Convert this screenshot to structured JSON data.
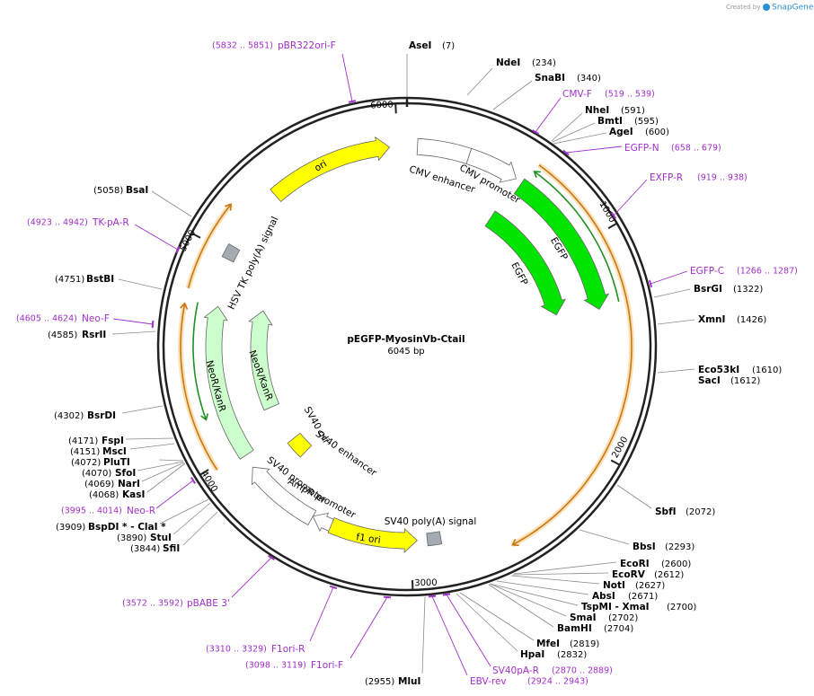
{
  "watermark": {
    "prefix": "Created by",
    "brand": "SnapGene"
  },
  "map": {
    "name": "pEGFP-MyosinVb-Ctail",
    "length": "6045 bp",
    "ticks": [
      "1000",
      "2000",
      "3000",
      "4000",
      "5000",
      "6000"
    ]
  },
  "features": [
    "ori",
    "CMV enhancer",
    "CMV promoter",
    "EGFP",
    "EGFP",
    "NeoR/KanR",
    "NeoR/KanR",
    "HSV TK poly(A) signal",
    "SV40 ori",
    "SV40 enhancer",
    "SV40 promoter",
    "AmpR promoter",
    "f1 ori",
    "SV40 poly(A) signal"
  ],
  "sites": [
    {
      "name": "AseI",
      "position": "(7)"
    },
    {
      "name": "NdeI",
      "position": "(234)"
    },
    {
      "name": "SnaBI",
      "position": "(340)"
    },
    {
      "name": "NheI",
      "position": "(591)"
    },
    {
      "name": "BmtI",
      "position": "(595)"
    },
    {
      "name": "AgeI",
      "position": "(600)"
    },
    {
      "name": "BsrGI",
      "position": "(1322)"
    },
    {
      "name": "XmnI",
      "position": "(1426)"
    },
    {
      "name": "Eco53kI",
      "position": "(1610)"
    },
    {
      "name": "SacI",
      "position": "(1612)"
    },
    {
      "name": "SbfI",
      "position": "(2072)"
    },
    {
      "name": "BbsI",
      "position": "(2293)"
    },
    {
      "name": "EcoRI",
      "position": "(2600)"
    },
    {
      "name": "EcoRV",
      "position": "(2612)"
    },
    {
      "name": "NotI",
      "position": "(2627)"
    },
    {
      "name": "AbsI",
      "position": "(2671)"
    },
    {
      "name": "TspMI - XmaI",
      "position": "(2700)"
    },
    {
      "name": "SmaI",
      "position": "(2702)"
    },
    {
      "name": "BamHI",
      "position": "(2704)"
    },
    {
      "name": "MfeI",
      "position": "(2819)"
    },
    {
      "name": "HpaI",
      "position": "(2832)"
    },
    {
      "name": "MluI",
      "position": "(2955)"
    },
    {
      "name": "SfiI",
      "position": "(3844)"
    },
    {
      "name": "StuI",
      "position": "(3890)"
    },
    {
      "name": "BspDI * - ClaI *",
      "position": "(3909)"
    },
    {
      "name": "KasI",
      "position": "(4068)"
    },
    {
      "name": "NarI",
      "position": "(4069)"
    },
    {
      "name": "SfoI",
      "position": "(4070)"
    },
    {
      "name": "PluTI",
      "position": "(4072)"
    },
    {
      "name": "MscI",
      "position": "(4151)"
    },
    {
      "name": "FspI",
      "position": "(4171)"
    },
    {
      "name": "BsrDI",
      "position": "(4302)"
    },
    {
      "name": "RsrII",
      "position": "(4585)"
    },
    {
      "name": "BstBI",
      "position": "(4751)"
    },
    {
      "name": "BsaI",
      "position": "(5058)"
    }
  ],
  "primers": [
    {
      "name": "pBR322ori-F",
      "range": "(5832 .. 5851)"
    },
    {
      "name": "CMV-F",
      "range": "(519 .. 539)"
    },
    {
      "name": "EGFP-N",
      "range": "(658 .. 679)"
    },
    {
      "name": "EXFP-R",
      "range": "(919 .. 938)"
    },
    {
      "name": "EGFP-C",
      "range": "(1266 .. 1287)"
    },
    {
      "name": "SV40pA-R",
      "range": "(2870 .. 2889)"
    },
    {
      "name": "EBV-rev",
      "range": "(2924 .. 2943)"
    },
    {
      "name": "F1ori-F",
      "range": "(3098 .. 3119)"
    },
    {
      "name": "F1ori-R",
      "range": "(3310 .. 3329)"
    },
    {
      "name": "pBABE 3'",
      "range": "(3572 .. 3592)"
    },
    {
      "name": "Neo-R",
      "range": "(3995 .. 4014)"
    },
    {
      "name": "Neo-F",
      "range": "(4605 .. 4624)"
    },
    {
      "name": "TK-pA-R",
      "range": "(4923 .. 4942)"
    }
  ]
}
